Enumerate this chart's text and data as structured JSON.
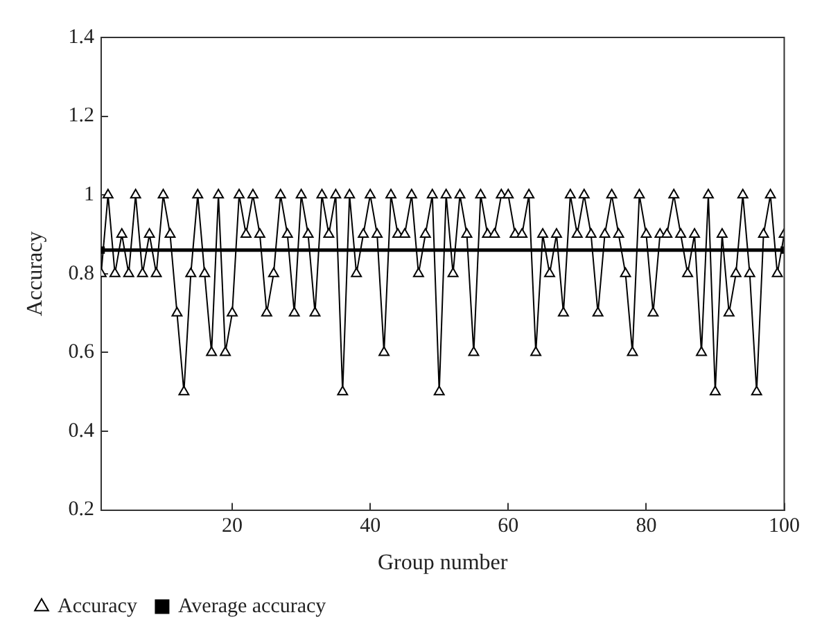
{
  "chart_data": {
    "type": "line",
    "xlabel": "Group number",
    "ylabel": "Accuracy",
    "x": [
      1,
      2,
      3,
      4,
      5,
      6,
      7,
      8,
      9,
      10,
      11,
      12,
      13,
      14,
      15,
      16,
      17,
      18,
      19,
      20,
      21,
      22,
      23,
      24,
      25,
      26,
      27,
      28,
      29,
      30,
      31,
      32,
      33,
      34,
      35,
      36,
      37,
      38,
      39,
      40,
      41,
      42,
      43,
      44,
      45,
      46,
      47,
      48,
      49,
      50,
      51,
      52,
      53,
      54,
      55,
      56,
      57,
      58,
      59,
      60,
      61,
      62,
      63,
      64,
      65,
      66,
      67,
      68,
      69,
      70,
      71,
      72,
      73,
      74,
      75,
      76,
      77,
      78,
      79,
      80,
      81,
      82,
      83,
      84,
      85,
      86,
      87,
      88,
      89,
      90,
      91,
      92,
      93,
      94,
      95,
      96,
      97,
      98,
      99,
      100
    ],
    "series": [
      {
        "name": "Accuracy",
        "color": "#000000",
        "marker": "triangle",
        "values": [
          0.8,
          1.0,
          0.8,
          0.9,
          0.8,
          1.0,
          0.8,
          0.9,
          0.8,
          1.0,
          0.9,
          0.7,
          0.5,
          0.8,
          1.0,
          0.8,
          0.6,
          1.0,
          0.6,
          0.7,
          1.0,
          0.9,
          1.0,
          0.9,
          0.7,
          0.8,
          1.0,
          0.9,
          0.7,
          1.0,
          0.9,
          0.7,
          1.0,
          0.9,
          1.0,
          0.5,
          1.0,
          0.8,
          0.9,
          1.0,
          0.9,
          0.6,
          1.0,
          0.9,
          0.9,
          1.0,
          0.8,
          0.9,
          1.0,
          0.5,
          1.0,
          0.8,
          1.0,
          0.9,
          0.6,
          1.0,
          0.9,
          0.9,
          1.0,
          1.0,
          0.9,
          0.9,
          1.0,
          0.6,
          0.9,
          0.8,
          0.9,
          0.7,
          1.0,
          0.9,
          1.0,
          0.9,
          0.7,
          0.9,
          1.0,
          0.9,
          0.8,
          0.6,
          1.0,
          0.9,
          0.7,
          0.9,
          0.9,
          1.0,
          0.9,
          0.8,
          0.9,
          0.6,
          1.0,
          0.5,
          0.9,
          0.7,
          0.8,
          1.0,
          0.8,
          0.5,
          0.9,
          1.0,
          0.8,
          0.9
        ]
      },
      {
        "name": "Average accuracy",
        "color": "#000000",
        "marker": "square",
        "x": [
          1,
          100
        ],
        "values": [
          0.86,
          0.86
        ]
      }
    ],
    "xlim": [
      1,
      100
    ],
    "xticks": [
      20,
      40,
      60,
      80,
      100
    ],
    "ylim": [
      0.2,
      1.4
    ],
    "yticks": [
      0.2,
      0.4,
      0.6,
      0.8,
      1,
      1.2,
      1.4
    ],
    "grid": false,
    "legend": "bottom left"
  }
}
